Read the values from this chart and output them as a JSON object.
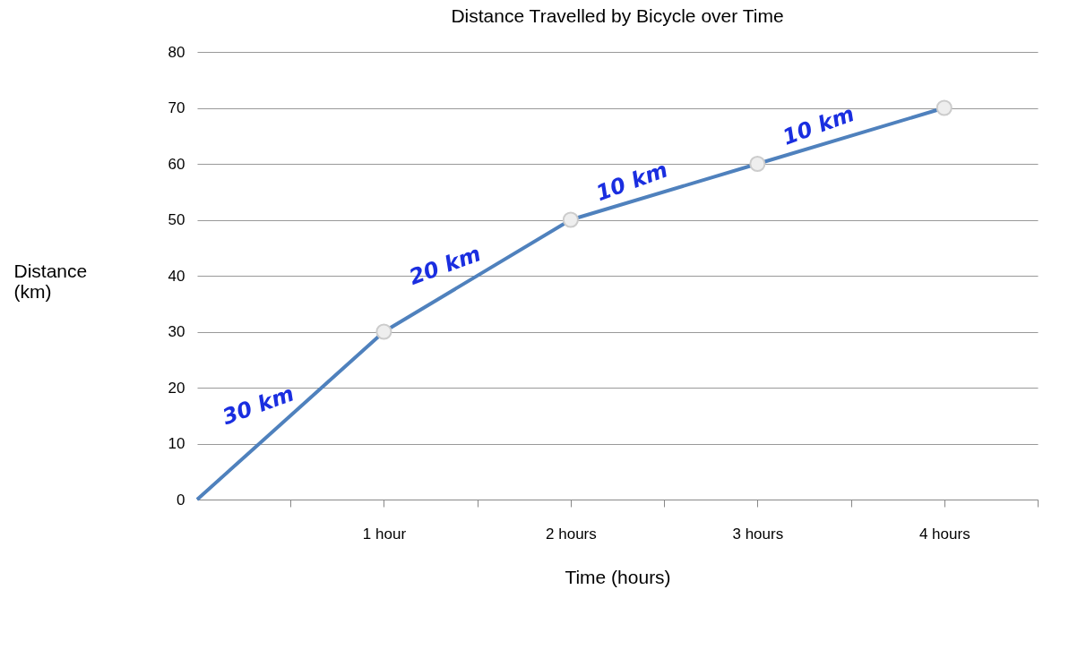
{
  "chart_data": {
    "type": "line",
    "title": "Distance Travelled by Bicycle over Time",
    "xlabel": "Time (hours)",
    "ylabel": "Distance (km)",
    "x": [
      0,
      1,
      2,
      3,
      4
    ],
    "series": [
      {
        "color": "#4f81bd",
        "values": [
          0,
          30,
          50,
          60,
          70
        ]
      }
    ],
    "xlim": [
      0,
      4.5
    ],
    "xticks": [
      {
        "value": 0.5,
        "label": null
      },
      {
        "value": 1,
        "label": "1 hour"
      },
      {
        "value": 1.5,
        "label": null
      },
      {
        "value": 2,
        "label": "2 hours"
      },
      {
        "value": 2.5,
        "label": null
      },
      {
        "value": 3,
        "label": "3 hours"
      },
      {
        "value": 3.5,
        "label": null
      },
      {
        "value": 4,
        "label": "4 hours"
      },
      {
        "value": 4.5,
        "label": null
      }
    ],
    "ylim": [
      0,
      80
    ],
    "yticks": [
      0,
      10,
      20,
      30,
      40,
      50,
      60,
      70,
      80
    ],
    "grid": "y",
    "marker": "circle",
    "line_style": "solid",
    "annotations": [
      "30 km",
      "20 km",
      "10 km",
      "10 km"
    ]
  }
}
